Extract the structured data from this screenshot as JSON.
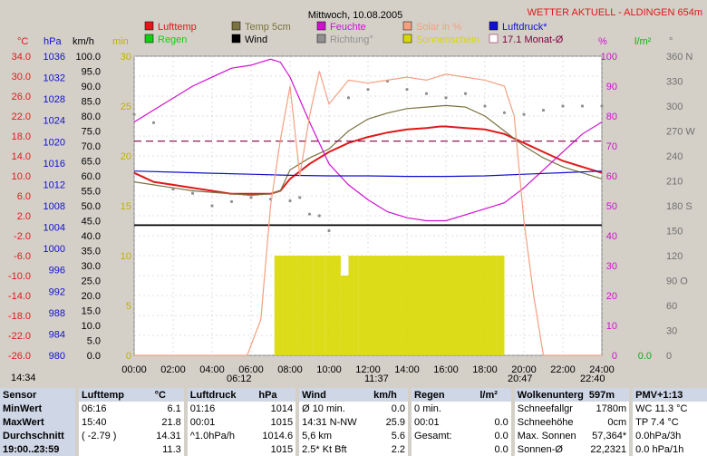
{
  "header": {
    "title": "Mittwoch, 10.08.2005",
    "station": "WETTER AKTUELL - ALDINGEN 654m"
  },
  "legend": [
    {
      "label": "Lufttemp",
      "color": "#e01818"
    },
    {
      "label": "Regen",
      "color": "#10d010"
    },
    {
      "label": "Temp 5cm",
      "color": "#7a7240"
    },
    {
      "label": "Wind",
      "color": "#000000"
    },
    {
      "label": "Feuchte",
      "color": "#d010d0"
    },
    {
      "label": "Richtung°",
      "color": "#909090"
    },
    {
      "label": "Solar in %",
      "color": "#f4a080"
    },
    {
      "label": "Sonnenschein",
      "color": "#d8d800"
    },
    {
      "label": "Luftdruck*",
      "color": "#1010d0"
    },
    {
      "label": "17.1 Monat-Ø",
      "color": "#800040"
    }
  ],
  "axis_units": {
    "celsius": "°C",
    "hpa": "hPa",
    "kmh": "km/h",
    "min": "min",
    "percent": "%",
    "lm2": "l/m²",
    "deg": "°"
  },
  "colors": {
    "celsius": "#e01818",
    "hpa": "#1010d0",
    "kmh": "#000000",
    "min": "#c0b000",
    "percent": "#d010d0",
    "lm2": "#10b010",
    "deg": "#707070",
    "plot_bg": "#ffffff",
    "grid": "#c0c0c0"
  },
  "time_markers": {
    "left": "14:34",
    "sunrise": "06:12",
    "noon": "11:37",
    "sunset": "20:47",
    "moon": "22:40"
  },
  "chart_data": {
    "type": "line",
    "title": "Mittwoch, 10.08.2005",
    "x_ticks": [
      "00:00",
      "02:00",
      "04:00",
      "06:00",
      "08:00",
      "10:00",
      "12:00",
      "14:00",
      "16:00",
      "18:00",
      "20:00",
      "22:00",
      "24:00"
    ],
    "xlim": [
      0,
      24
    ],
    "axes": {
      "celsius": {
        "ylim": [
          -26,
          34
        ],
        "ticks": [
          "34.0",
          "30.0",
          "26.0",
          "22.0",
          "18.0",
          "14.0",
          "10.0",
          "6.0",
          "2.0",
          "-2.0",
          "-6.0",
          "-10.0",
          "-14.0",
          "-18.0",
          "-22.0",
          "-26.0"
        ]
      },
      "hpa": {
        "ylim": [
          980,
          1036
        ],
        "ticks": [
          "1036",
          "1032",
          "1028",
          "1024",
          "1020",
          "1016",
          "1012",
          "1008",
          "1004",
          "1000",
          "996",
          "992",
          "988",
          "984",
          "980"
        ]
      },
      "kmh": {
        "ylim": [
          0,
          100
        ],
        "ticks": [
          "100.0",
          "95.0",
          "90.0",
          "85.0",
          "80.0",
          "75.0",
          "70.0",
          "65.0",
          "60.0",
          "55.0",
          "50.0",
          "45.0",
          "40.0",
          "35.0",
          "30.0",
          "25.0",
          "20.0",
          "15.0",
          "10.0",
          "5.0",
          "0.0"
        ]
      },
      "min": {
        "ylim": [
          0,
          30
        ],
        "ticks": [
          "30",
          "25",
          "20",
          "15",
          "10",
          "5",
          "0"
        ]
      },
      "percent": {
        "ylim": [
          0,
          100
        ],
        "ticks": [
          "100",
          "90",
          "80",
          "70",
          "60",
          "50",
          "40",
          "30",
          "20",
          "10",
          "0"
        ]
      },
      "lm2": {
        "ylim": [
          0,
          10
        ],
        "ticks": [
          "0.0"
        ]
      },
      "deg": {
        "ylim": [
          0,
          360
        ],
        "ticks": [
          "360 N",
          "330",
          "300",
          "270 W",
          "240",
          "210",
          "180 S",
          "150",
          "120",
          "90 O",
          "60",
          "30",
          "0"
        ]
      }
    },
    "series": [
      {
        "name": "Lufttemp",
        "axis": "kmh",
        "color": "#e01818",
        "x": [
          0,
          0.5,
          1,
          2,
          3,
          4,
          5,
          6,
          7,
          7.5,
          8,
          9,
          10,
          11,
          12,
          13,
          14,
          15,
          15.7,
          16,
          17,
          18,
          19,
          20,
          21,
          22,
          23,
          24
        ],
        "y": [
          61,
          59.5,
          58,
          57,
          56,
          55,
          54,
          54,
          54,
          55,
          59,
          64,
          68,
          71,
          73,
          74.5,
          75.5,
          76,
          76.5,
          76.5,
          76,
          75.5,
          74,
          71,
          68,
          65,
          63,
          61
        ]
      },
      {
        "name": "Temp 5cm",
        "axis": "kmh",
        "color": "#7a7240",
        "x": [
          0,
          1,
          2,
          3,
          4,
          5,
          6,
          7,
          7.5,
          8,
          9,
          10,
          11,
          12,
          13,
          14,
          15,
          16,
          17,
          18,
          19,
          20,
          21,
          22,
          23,
          24
        ],
        "y": [
          58,
          57,
          56,
          55,
          54.5,
          54,
          53.5,
          54,
          55,
          62,
          66,
          69,
          75,
          79,
          81,
          82.5,
          83,
          83.5,
          83,
          80,
          75,
          70,
          66,
          63,
          61,
          59
        ]
      },
      {
        "name": "Feuchte",
        "axis": "percent",
        "color": "#d010d0",
        "x": [
          0,
          1,
          2,
          3,
          4,
          5,
          6,
          6.5,
          7,
          7.5,
          8,
          9,
          10,
          11,
          12,
          13,
          14,
          15,
          16,
          17,
          18,
          19,
          20,
          21,
          22,
          23,
          24
        ],
        "y": [
          78,
          82,
          86,
          90,
          93,
          96,
          97,
          98,
          99,
          98,
          93,
          78,
          64,
          57,
          52,
          48,
          46,
          45,
          45,
          47,
          49,
          51,
          56,
          62,
          68,
          74,
          78
        ]
      },
      {
        "name": "Luftdruck*",
        "axis": "hpa",
        "color": "#1010d0",
        "x": [
          0,
          2,
          4,
          6,
          8,
          10,
          12,
          14,
          16,
          18,
          20,
          22,
          24
        ],
        "y": [
          1014.5,
          1014.3,
          1014.1,
          1013.9,
          1013.7,
          1013.6,
          1013.6,
          1013.5,
          1013.5,
          1013.6,
          1013.9,
          1014.2,
          1014.5
        ]
      },
      {
        "name": "17.1 Monat-Ø",
        "axis": "kmh",
        "color": "#800040",
        "x": [
          0,
          24
        ],
        "y": [
          71.6,
          71.6
        ]
      },
      {
        "name": "Wind",
        "axis": "kmh",
        "color": "#000000",
        "x": [
          0,
          24
        ],
        "y": [
          43.5,
          43.5
        ]
      },
      {
        "name": "Richtung°",
        "axis": "deg",
        "color": "#909090",
        "x": [
          0,
          1,
          2,
          3,
          4,
          5,
          6,
          7,
          8,
          8.5,
          9,
          9.5,
          10,
          11,
          12,
          13,
          14,
          15,
          16,
          17,
          18,
          19,
          20,
          21,
          22,
          23,
          24
        ],
        "y": [
          290,
          280,
          200,
          195,
          180,
          185,
          190,
          188,
          186,
          190,
          170,
          168,
          150,
          310,
          320,
          330,
          320,
          315,
          310,
          315,
          300,
          292,
          290,
          295,
          300,
          300,
          300
        ]
      },
      {
        "name": "Solar in %",
        "axis": "percent",
        "color": "#f4a080",
        "x": [
          0,
          5.8,
          6.5,
          7,
          7.5,
          8,
          8.5,
          9,
          9.5,
          10,
          10.5,
          11,
          12,
          13,
          14,
          15,
          16,
          17,
          18,
          19,
          19.5,
          20,
          20.5,
          21,
          24
        ],
        "y": [
          0,
          0,
          12,
          50,
          72,
          90,
          60,
          80,
          95,
          84,
          88,
          92,
          91,
          92,
          93,
          92,
          94,
          93,
          92,
          90,
          80,
          45,
          20,
          0,
          0
        ]
      },
      {
        "name": "Sonnenschein",
        "axis": "min",
        "color": "#d8d800",
        "x": [
          7.2,
          7.6,
          8.4,
          9.2,
          9.8,
          10,
          10.6,
          11,
          11.5,
          12,
          13,
          14,
          15,
          16,
          17,
          18,
          18.6,
          19
        ],
        "y": [
          10,
          10,
          10,
          10,
          10,
          10,
          8,
          10,
          10,
          10,
          10,
          10,
          10,
          10,
          10,
          10,
          10,
          0
        ]
      }
    ]
  },
  "stats": {
    "headers": [
      "Sensor",
      "Lufttemp",
      "°C",
      "Luftdruck",
      "hPa",
      "Wind",
      "km/h",
      "Regen",
      "l/m²",
      "Wolkenunterg",
      "597m",
      "PMV+1:13"
    ],
    "rows": [
      [
        "MinWert",
        "06:16",
        "6.1",
        "01:16",
        "1014",
        "Ø 10 min.",
        "0.0",
        "0 min.",
        "",
        "Schneefallgr",
        "1780m",
        "WC 11.3 °C"
      ],
      [
        "MaxWert",
        "15:40",
        "21.8",
        "00:01",
        "1015",
        "14:31  N-NW",
        "25.9",
        "00:01",
        "0.0",
        "Schneehöhe",
        "0cm",
        "TP 7.4 °C"
      ],
      [
        "Durchschnitt",
        "( -2.79 )",
        "14.31",
        "^1.0hPa/h",
        "1014.6",
        "5,6 km",
        "5.6",
        "Gesamt:",
        "0.0",
        "Max. Sonnen",
        "57,364*",
        "0.0hPa/3h"
      ],
      [
        "19:00..23:59",
        "",
        "11.3",
        "",
        "1015",
        "2.5*  Kt   Bft",
        "2.2",
        "",
        "0.0",
        "Sonnen-Ø",
        "22,2321",
        "0.0 hPa/1h"
      ]
    ]
  }
}
